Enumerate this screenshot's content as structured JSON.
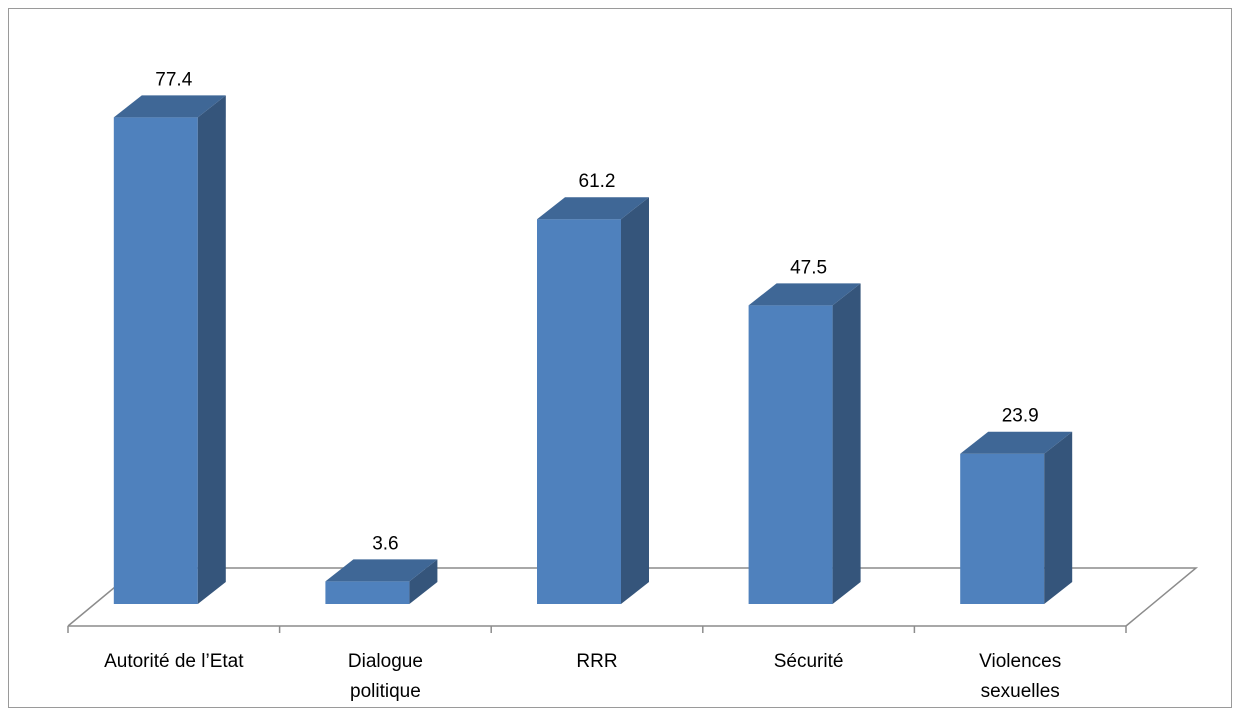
{
  "chart_data": {
    "type": "bar",
    "style": "3d-column",
    "categories": [
      [
        "Autorité de l’Etat"
      ],
      [
        "Dialogue",
        "politique"
      ],
      [
        "RRR"
      ],
      [
        "Sécurité"
      ],
      [
        "Violences",
        "sexuelles"
      ]
    ],
    "values": [
      77.4,
      3.6,
      61.2,
      47.5,
      23.9
    ],
    "data_labels": [
      "77.4",
      "3.6",
      "61.2",
      "47.5",
      "23.9"
    ],
    "title": "",
    "xlabel": "",
    "ylabel": "",
    "ylim": [
      0,
      80
    ],
    "grid": false,
    "legend": "none",
    "colors": {
      "front": "#4f81bd",
      "side": "#35557b",
      "top": "#3f6796",
      "floor_line": "#8c8c8c",
      "frame": "#9a9a9a"
    }
  }
}
